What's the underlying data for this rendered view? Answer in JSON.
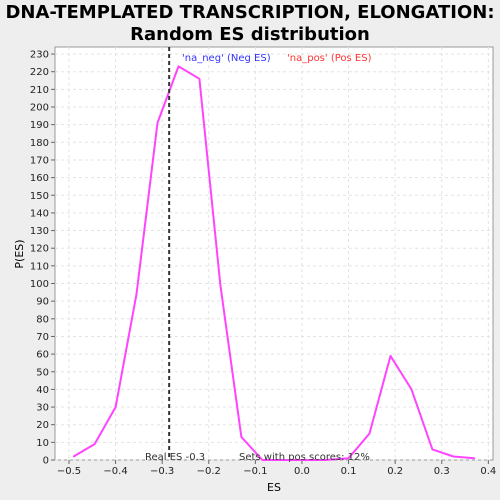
{
  "chart_data": {
    "type": "line",
    "title_line1": "DNA-TEMPLATED TRANSCRIPTION, ELONGATION:",
    "title_line2": "Random ES distribution",
    "xlabel": "ES",
    "ylabel": "P(ES)",
    "xlim": [
      -0.53,
      0.41
    ],
    "ylim": [
      0,
      234
    ],
    "xticks": [
      -0.5,
      -0.4,
      -0.3,
      -0.2,
      -0.1,
      0.0,
      0.1,
      0.2,
      0.3,
      0.4
    ],
    "yticks": [
      0,
      10,
      20,
      30,
      40,
      50,
      60,
      70,
      80,
      90,
      100,
      110,
      120,
      130,
      140,
      150,
      160,
      170,
      180,
      190,
      200,
      210,
      220,
      230
    ],
    "grid": true,
    "series": [
      {
        "color": "#ff44ff",
        "x": [
          -0.49,
          -0.445,
          -0.4,
          -0.355,
          -0.31,
          -0.265,
          -0.22,
          -0.175,
          -0.13,
          -0.085,
          -0.04,
          0.005,
          0.05,
          0.1,
          0.145,
          0.19,
          0.235,
          0.28,
          0.325,
          0.37
        ],
        "y": [
          2,
          9,
          30,
          94,
          191,
          223,
          216,
          99,
          13,
          0,
          0,
          0,
          0,
          1,
          15,
          59,
          40,
          6,
          2,
          1
        ]
      }
    ],
    "real_es": -0.285,
    "legend": [
      {
        "label": "'na_neg' (Neg ES)",
        "color": "#3333ff"
      },
      {
        "label": "'na_pos' (Pos ES)",
        "color": "#ff3333"
      }
    ],
    "legend_placement": "top",
    "annotations": {
      "real_es_text": "Real ES -0.3",
      "pos_scores_text": "Sets with pos scores: 12%"
    }
  }
}
